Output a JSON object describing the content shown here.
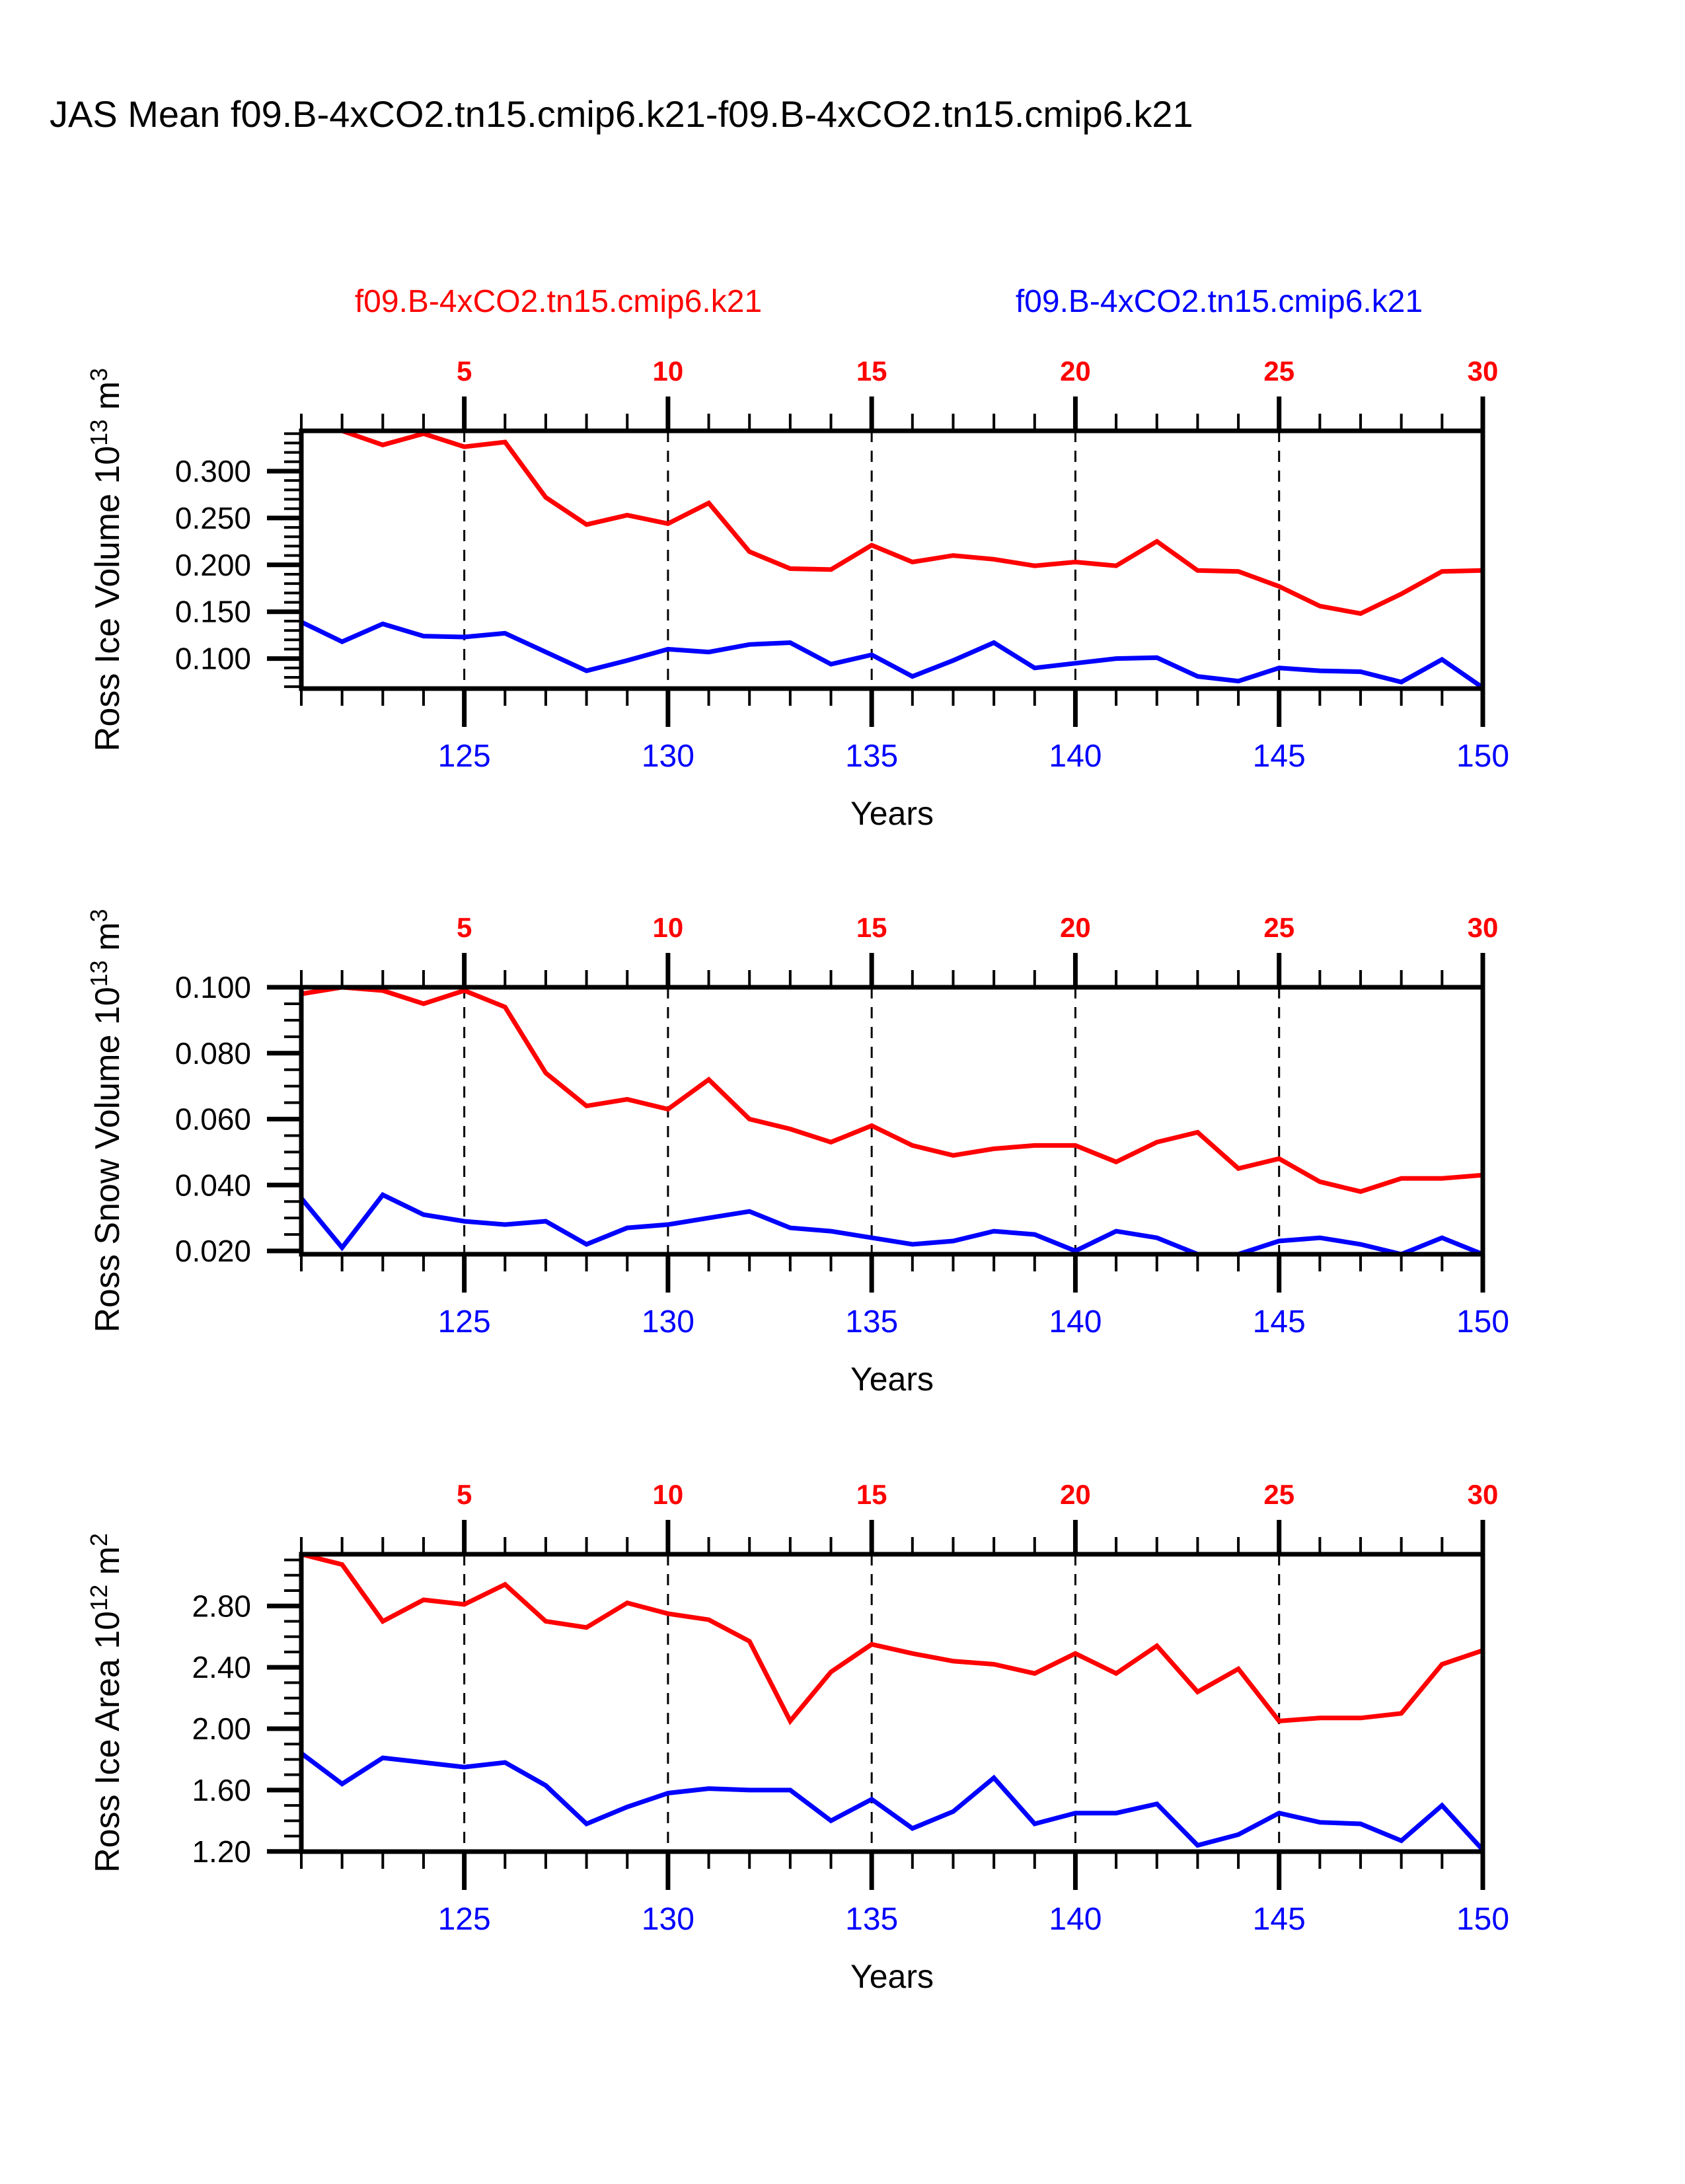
{
  "page": {
    "title": "JAS Mean f09.B-4xCO2.tn15.cmip6.k21-f09.B-4xCO2.tn15.cmip6.k21"
  },
  "legend": {
    "red_label": "f09.B-4xCO2.tn15.cmip6.k21",
    "blue_label": "f09.B-4xCO2.tn15.cmip6.k21",
    "red_color": "#ff0000",
    "blue_color": "#0000ff"
  },
  "chart_data": [
    {
      "type": "line",
      "name": "ross-ice-volume",
      "ylabel_segments": [
        {
          "t": "Ross Ice Volume 10",
          "sup": false
        },
        {
          "t": "13",
          "sup": true
        },
        {
          "t": " m",
          "sup": false
        },
        {
          "t": "3",
          "sup": true
        }
      ],
      "xlabel": "Years",
      "x": [
        121,
        122,
        123,
        124,
        125,
        126,
        127,
        128,
        129,
        130,
        131,
        132,
        133,
        134,
        135,
        136,
        137,
        138,
        139,
        140,
        141,
        142,
        143,
        144,
        145,
        146,
        147,
        148,
        149,
        150
      ],
      "series": [
        {
          "name": "f09.B-4xCO2.tn15.cmip6.k21 (red)",
          "color": "#ff0000",
          "values": [
            0.344,
            0.343,
            0.328,
            0.34,
            0.326,
            0.331,
            0.272,
            0.243,
            0.253,
            0.244,
            0.266,
            0.214,
            0.196,
            0.195,
            0.221,
            0.203,
            0.21,
            0.206,
            0.199,
            0.203,
            0.199,
            0.225,
            0.194,
            0.193,
            0.177,
            0.156,
            0.148,
            0.169,
            0.193,
            0.194
          ]
        },
        {
          "name": "f09.B-4xCO2.tn15.cmip6.k21 (blue)",
          "color": "#0000ff",
          "values": [
            0.139,
            0.118,
            0.137,
            0.124,
            0.123,
            0.127,
            0.107,
            0.087,
            0.098,
            0.11,
            0.107,
            0.115,
            0.117,
            0.094,
            0.104,
            0.081,
            0.098,
            0.117,
            0.09,
            0.095,
            0.1,
            0.101,
            0.081,
            0.076,
            0.09,
            0.087,
            0.086,
            0.075,
            0.099,
            0.069
          ]
        }
      ],
      "ylim": [
        0.068,
        0.343
      ],
      "y_ticks": [
        {
          "v": 0.3,
          "label": "0.300"
        },
        {
          "v": 0.25,
          "label": "0.250"
        },
        {
          "v": 0.2,
          "label": "0.200"
        },
        {
          "v": 0.15,
          "label": "0.150"
        },
        {
          "v": 0.1,
          "label": "0.100"
        }
      ],
      "y_minor_step": 0.01,
      "x_ticks_top": [
        {
          "v": 125,
          "label": "5"
        },
        {
          "v": 130,
          "label": "10"
        },
        {
          "v": 135,
          "label": "15"
        },
        {
          "v": 140,
          "label": "20"
        },
        {
          "v": 145,
          "label": "25"
        },
        {
          "v": 150,
          "label": "30"
        }
      ],
      "x_ticks_bottom": [
        {
          "v": 125,
          "label": "125"
        },
        {
          "v": 130,
          "label": "130"
        },
        {
          "v": 135,
          "label": "135"
        },
        {
          "v": 140,
          "label": "140"
        },
        {
          "v": 145,
          "label": "145"
        },
        {
          "v": 150,
          "label": "150"
        }
      ],
      "x_gridlines": [
        125,
        130,
        135,
        140,
        145
      ],
      "grid": "vertical-dashed",
      "legend_position": "top"
    },
    {
      "type": "line",
      "name": "ross-snow-volume",
      "ylabel_segments": [
        {
          "t": "Ross Snow Volume 10",
          "sup": false
        },
        {
          "t": "13",
          "sup": true
        },
        {
          "t": " m",
          "sup": false
        },
        {
          "t": "3",
          "sup": true
        }
      ],
      "xlabel": "Years",
      "x": [
        121,
        122,
        123,
        124,
        125,
        126,
        127,
        128,
        129,
        130,
        131,
        132,
        133,
        134,
        135,
        136,
        137,
        138,
        139,
        140,
        141,
        142,
        143,
        144,
        145,
        146,
        147,
        148,
        149,
        150
      ],
      "series": [
        {
          "name": "f09.B-4xCO2.tn15.cmip6.k21 (red)",
          "color": "#ff0000",
          "values": [
            0.098,
            0.1,
            0.099,
            0.095,
            0.099,
            0.094,
            0.074,
            0.064,
            0.066,
            0.063,
            0.072,
            0.06,
            0.057,
            0.053,
            0.058,
            0.052,
            0.049,
            0.051,
            0.052,
            0.052,
            0.047,
            0.053,
            0.056,
            0.045,
            0.048,
            0.041,
            0.038,
            0.042,
            0.042,
            0.043
          ]
        },
        {
          "name": "f09.B-4xCO2.tn15.cmip6.k21 (blue)",
          "color": "#0000ff",
          "values": [
            0.036,
            0.021,
            0.037,
            0.031,
            0.029,
            0.028,
            0.029,
            0.022,
            0.027,
            0.028,
            0.03,
            0.032,
            0.027,
            0.026,
            0.024,
            0.022,
            0.023,
            0.026,
            0.025,
            0.02,
            0.026,
            0.024,
            0.019,
            0.019,
            0.023,
            0.024,
            0.022,
            0.018,
            0.024,
            0.019
          ]
        }
      ],
      "ylim": [
        0.019,
        0.1
      ],
      "y_ticks": [
        {
          "v": 0.1,
          "label": "0.100"
        },
        {
          "v": 0.08,
          "label": "0.080"
        },
        {
          "v": 0.06,
          "label": "0.060"
        },
        {
          "v": 0.04,
          "label": "0.040"
        },
        {
          "v": 0.02,
          "label": "0.020"
        }
      ],
      "y_minor_step": 0.005,
      "x_ticks_top": [
        {
          "v": 125,
          "label": "5"
        },
        {
          "v": 130,
          "label": "10"
        },
        {
          "v": 135,
          "label": "15"
        },
        {
          "v": 140,
          "label": "20"
        },
        {
          "v": 145,
          "label": "25"
        },
        {
          "v": 150,
          "label": "30"
        }
      ],
      "x_ticks_bottom": [
        {
          "v": 125,
          "label": "125"
        },
        {
          "v": 130,
          "label": "130"
        },
        {
          "v": 135,
          "label": "135"
        },
        {
          "v": 140,
          "label": "140"
        },
        {
          "v": 145,
          "label": "145"
        },
        {
          "v": 150,
          "label": "150"
        }
      ],
      "x_gridlines": [
        125,
        130,
        135,
        140,
        145
      ],
      "grid": "vertical-dashed",
      "legend_position": "top"
    },
    {
      "type": "line",
      "name": "ross-ice-area",
      "ylabel_segments": [
        {
          "t": "Ross Ice Area 10",
          "sup": false
        },
        {
          "t": "12",
          "sup": true
        },
        {
          "t": " m",
          "sup": false
        },
        {
          "t": "2",
          "sup": true
        }
      ],
      "xlabel": "Years",
      "x": [
        121,
        122,
        123,
        124,
        125,
        126,
        127,
        128,
        129,
        130,
        131,
        132,
        133,
        134,
        135,
        136,
        137,
        138,
        139,
        140,
        141,
        142,
        143,
        144,
        145,
        146,
        147,
        148,
        149,
        150
      ],
      "series": [
        {
          "name": "f09.B-4xCO2.tn15.cmip6.k21 (red)",
          "color": "#ff0000",
          "values": [
            3.14,
            3.07,
            2.7,
            2.84,
            2.81,
            2.94,
            2.7,
            2.66,
            2.82,
            2.75,
            2.71,
            2.57,
            2.05,
            2.37,
            2.55,
            2.49,
            2.44,
            2.42,
            2.36,
            2.49,
            2.36,
            2.54,
            2.24,
            2.39,
            2.05,
            2.07,
            2.07,
            2.1,
            2.42,
            2.51
          ]
        },
        {
          "name": "f09.B-4xCO2.tn15.cmip6.k21 (blue)",
          "color": "#0000ff",
          "values": [
            1.84,
            1.64,
            1.81,
            1.78,
            1.75,
            1.78,
            1.63,
            1.38,
            1.49,
            1.58,
            1.61,
            1.6,
            1.6,
            1.4,
            1.54,
            1.35,
            1.46,
            1.68,
            1.38,
            1.45,
            1.45,
            1.51,
            1.24,
            1.31,
            1.45,
            1.39,
            1.38,
            1.27,
            1.5,
            1.21
          ]
        }
      ],
      "ylim": [
        1.199,
        3.137
      ],
      "y_ticks": [
        {
          "v": 2.8,
          "label": "2.80"
        },
        {
          "v": 2.4,
          "label": "2.40"
        },
        {
          "v": 2.0,
          "label": "2.00"
        },
        {
          "v": 1.6,
          "label": "1.60"
        },
        {
          "v": 1.2,
          "label": "1.20"
        }
      ],
      "y_minor_step": 0.1,
      "x_ticks_top": [
        {
          "v": 125,
          "label": "5"
        },
        {
          "v": 130,
          "label": "10"
        },
        {
          "v": 135,
          "label": "15"
        },
        {
          "v": 140,
          "label": "20"
        },
        {
          "v": 145,
          "label": "25"
        },
        {
          "v": 150,
          "label": "30"
        }
      ],
      "x_ticks_bottom": [
        {
          "v": 125,
          "label": "125"
        },
        {
          "v": 130,
          "label": "130"
        },
        {
          "v": 135,
          "label": "135"
        },
        {
          "v": 140,
          "label": "140"
        },
        {
          "v": 145,
          "label": "145"
        },
        {
          "v": 150,
          "label": "150"
        }
      ],
      "x_gridlines": [
        125,
        130,
        135,
        140,
        145
      ],
      "grid": "vertical-dashed",
      "legend_position": "top"
    }
  ]
}
